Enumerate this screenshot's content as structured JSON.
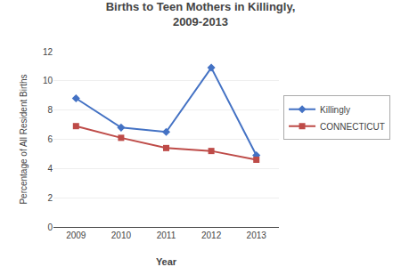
{
  "chart_data": {
    "type": "line",
    "title": "Births to Teen Mothers in Killingly,\n2009-2013",
    "x_label": "Year",
    "y_label": "Percentage of All Resident Births",
    "x": [
      2009,
      2010,
      2011,
      2012,
      2013
    ],
    "series": [
      {
        "name": "Killingly",
        "color": "#4472C4",
        "marker": "diamond",
        "line_style": "solid",
        "values": [
          8.8,
          6.8,
          6.5,
          10.9,
          4.9
        ]
      },
      {
        "name": "CONNECTICUT",
        "color": "#BE4B48",
        "marker": "square",
        "line_style": "solid",
        "values": [
          6.9,
          6.1,
          5.4,
          5.2,
          4.6
        ]
      }
    ],
    "xlim": [
      2008.5,
      2013.5
    ],
    "xticks": [
      2009,
      2010,
      2011,
      2012,
      2013
    ],
    "ylim": [
      0,
      12
    ],
    "yticks": [
      0,
      2,
      4,
      6,
      8,
      10,
      12
    ],
    "grid": true,
    "legend": "right"
  }
}
